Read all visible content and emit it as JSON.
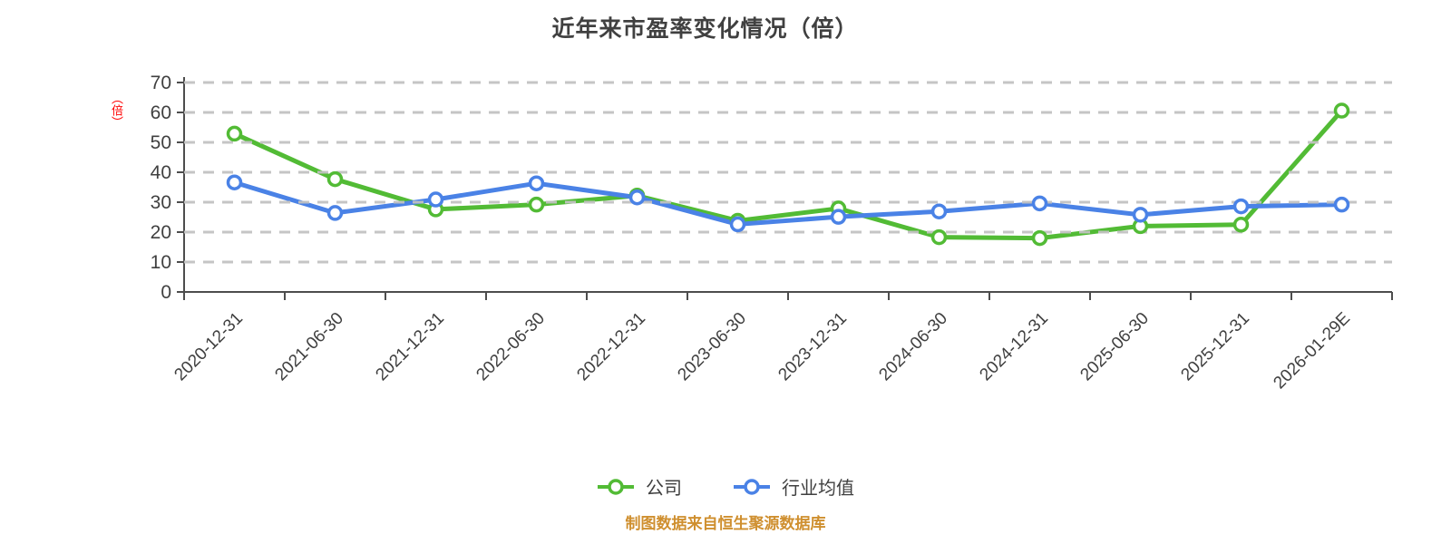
{
  "chart_data": {
    "type": "line",
    "title": "近年来市盈率变化情况（倍）",
    "unit_label": "（倍）",
    "categories": [
      "2020-12-31",
      "2021-06-30",
      "2021-12-31",
      "2022-06-30",
      "2022-12-31",
      "2023-06-30",
      "2023-12-31",
      "2024-06-30",
      "2024-12-31",
      "2025-06-30",
      "2025-12-31",
      "2026-01-29E"
    ],
    "series": [
      {
        "name": "公司",
        "color": "#52bb35",
        "marker": "circle-white-fill",
        "values": [
          52.9,
          37.7,
          27.6,
          29.2,
          32.2,
          23.8,
          27.9,
          18.3,
          18.0,
          22.0,
          22.5,
          60.6
        ]
      },
      {
        "name": "行业均值",
        "color": "#4a82e6",
        "marker": "circle-white-fill",
        "values": [
          36.6,
          26.4,
          30.9,
          36.3,
          31.6,
          22.6,
          25.1,
          26.9,
          29.6,
          25.8,
          28.6,
          29.2
        ]
      }
    ],
    "ylim": [
      0,
      70
    ],
    "y_ticks": [
      0,
      10,
      20,
      30,
      40,
      50,
      60,
      70
    ],
    "grid": "horizontal-dashed",
    "legend_position": "bottom",
    "footer": "制图数据来自恒生聚源数据库",
    "colors": {
      "background": "#ffffff",
      "text": "#404040",
      "axis": "#4d4d4d",
      "grid": "#c2c2c2",
      "unit_label": "#ff0000",
      "footer": "#cf8f2f"
    }
  }
}
